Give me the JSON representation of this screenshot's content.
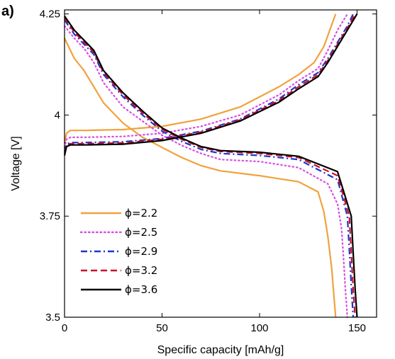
{
  "panel_label": "a)",
  "chart_data": {
    "type": "line",
    "title": "",
    "xlabel": "Specific capacity [mAh/g]",
    "ylabel": "Voltage [V]",
    "xlim": [
      0,
      160
    ],
    "ylim": [
      3.5,
      4.26
    ],
    "xticks": [
      0,
      50,
      100,
      150
    ],
    "xtick_labels": [
      "0",
      "50",
      "100",
      "150"
    ],
    "yticks": [
      3.5,
      3.75,
      4.0,
      4.25
    ],
    "ytick_labels": [
      "3.5",
      "3.75",
      "4",
      "4.25"
    ],
    "grid": false,
    "legend_position": "lower-left",
    "series": [
      {
        "name": "ϕ=2.2",
        "color": "#f0a23c",
        "style": "solid",
        "charge": {
          "x": [
            0,
            1,
            3,
            10,
            30,
            50,
            70,
            90,
            110,
            120,
            128,
            133,
            136,
            139
          ],
          "y": [
            3.93,
            3.955,
            3.962,
            3.962,
            3.964,
            3.972,
            3.99,
            4.02,
            4.07,
            4.1,
            4.13,
            4.17,
            4.21,
            4.25
          ]
        },
        "discharge": {
          "x": [
            0,
            2,
            5,
            10,
            15,
            20,
            30,
            40,
            50,
            60,
            70,
            80,
            100,
            120,
            130,
            133,
            135,
            137,
            138,
            139
          ],
          "y": [
            4.19,
            4.17,
            4.14,
            4.11,
            4.07,
            4.03,
            3.98,
            3.945,
            3.92,
            3.895,
            3.875,
            3.862,
            3.85,
            3.835,
            3.81,
            3.76,
            3.7,
            3.62,
            3.56,
            3.5
          ]
        }
      },
      {
        "name": "ϕ=2.5",
        "color": "#d84be6",
        "style": "dotted",
        "charge": {
          "x": [
            0,
            1,
            3,
            10,
            30,
            50,
            70,
            90,
            110,
            120,
            130,
            135,
            140,
            145
          ],
          "y": [
            3.92,
            3.94,
            3.945,
            3.945,
            3.947,
            3.955,
            3.972,
            4.0,
            4.05,
            4.085,
            4.115,
            4.16,
            4.21,
            4.25
          ]
        },
        "discharge": {
          "x": [
            0,
            5,
            10,
            15,
            20,
            30,
            40,
            50,
            60,
            70,
            80,
            100,
            120,
            135,
            140,
            142,
            143,
            144,
            145
          ],
          "y": [
            4.22,
            4.19,
            4.165,
            4.13,
            4.08,
            4.02,
            3.985,
            3.95,
            3.925,
            3.905,
            3.89,
            3.885,
            3.87,
            3.83,
            3.78,
            3.72,
            3.65,
            3.57,
            3.5
          ]
        }
      },
      {
        "name": "ϕ=2.9",
        "color": "#2233cc",
        "style": "dashdot",
        "charge": {
          "x": [
            0,
            1,
            3,
            10,
            30,
            50,
            70,
            90,
            110,
            120,
            130,
            135,
            140,
            145,
            148
          ],
          "y": [
            3.91,
            3.928,
            3.932,
            3.932,
            3.934,
            3.942,
            3.96,
            3.99,
            4.04,
            4.075,
            4.105,
            4.14,
            4.18,
            4.22,
            4.25
          ]
        },
        "discharge": {
          "x": [
            0,
            5,
            10,
            15,
            20,
            30,
            40,
            50,
            60,
            70,
            80,
            100,
            120,
            140,
            145,
            146,
            147,
            148
          ],
          "y": [
            4.235,
            4.2,
            4.175,
            4.15,
            4.1,
            4.045,
            4.0,
            3.96,
            3.935,
            3.915,
            3.905,
            3.9,
            3.89,
            3.84,
            3.75,
            3.67,
            3.58,
            3.5
          ]
        }
      },
      {
        "name": "ϕ=3.2",
        "color": "#c8102e",
        "style": "dashed",
        "charge": {
          "x": [
            0,
            1,
            3,
            10,
            30,
            50,
            70,
            90,
            110,
            120,
            130,
            135,
            140,
            145,
            149
          ],
          "y": [
            3.905,
            3.925,
            3.929,
            3.929,
            3.931,
            3.94,
            3.958,
            3.988,
            4.036,
            4.07,
            4.1,
            4.135,
            4.175,
            4.215,
            4.25
          ]
        },
        "discharge": {
          "x": [
            0,
            5,
            10,
            15,
            20,
            30,
            40,
            50,
            60,
            70,
            80,
            100,
            120,
            140,
            146,
            147,
            148,
            149
          ],
          "y": [
            4.24,
            4.205,
            4.18,
            4.155,
            4.105,
            4.05,
            4.005,
            3.965,
            3.94,
            3.92,
            3.91,
            3.905,
            3.895,
            3.85,
            3.75,
            3.66,
            3.57,
            3.5
          ]
        }
      },
      {
        "name": "ϕ=3.6",
        "color": "#000000",
        "style": "solid",
        "charge": {
          "x": [
            0,
            1,
            3,
            10,
            30,
            50,
            70,
            90,
            110,
            120,
            130,
            135,
            140,
            145,
            150
          ],
          "y": [
            3.9,
            3.922,
            3.926,
            3.926,
            3.928,
            3.937,
            3.955,
            3.985,
            4.032,
            4.065,
            4.095,
            4.13,
            4.17,
            4.21,
            4.25
          ]
        },
        "discharge": {
          "x": [
            0,
            5,
            10,
            15,
            20,
            30,
            40,
            50,
            60,
            70,
            80,
            100,
            120,
            140,
            147,
            148,
            149,
            150
          ],
          "y": [
            4.245,
            4.21,
            4.185,
            4.16,
            4.11,
            4.055,
            4.01,
            3.968,
            3.943,
            3.922,
            3.912,
            3.908,
            3.898,
            3.86,
            3.75,
            3.66,
            3.57,
            3.5
          ]
        }
      }
    ]
  }
}
